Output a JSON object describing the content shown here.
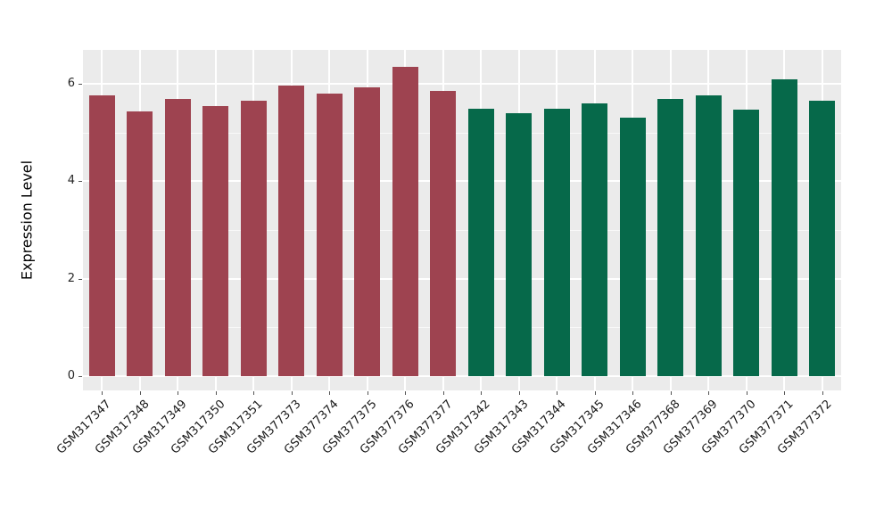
{
  "chart_data": {
    "type": "bar",
    "title": "",
    "xlabel": "",
    "ylabel": "Expression Level",
    "ylim": [
      0,
      6.7
    ],
    "yticks_major": [
      0,
      2,
      4,
      6
    ],
    "yticks_minor": [
      1,
      3,
      5
    ],
    "grid": "on",
    "legend": "none",
    "panel_background": "#EBEBEB",
    "grid_color": "#FFFFFF",
    "categories": [
      "GSM317347",
      "GSM317348",
      "GSM317349",
      "GSM317350",
      "GSM317351",
      "GSM377373",
      "GSM377374",
      "GSM377375",
      "GSM377376",
      "GSM377377",
      "GSM317342",
      "GSM317343",
      "GSM317344",
      "GSM317345",
      "GSM317346",
      "GSM377368",
      "GSM377369",
      "GSM377370",
      "GSM377371",
      "GSM377372"
    ],
    "values": [
      5.77,
      5.43,
      5.7,
      5.54,
      5.65,
      5.97,
      5.81,
      5.93,
      6.36,
      5.86,
      5.5,
      5.4,
      5.5,
      5.61,
      5.3,
      5.7,
      5.77,
      5.48,
      6.09,
      5.66
    ],
    "bar_colors": [
      "#9E4350",
      "#9E4350",
      "#9E4350",
      "#9E4350",
      "#9E4350",
      "#9E4350",
      "#9E4350",
      "#9E4350",
      "#9E4350",
      "#9E4350",
      "#06694A",
      "#06694A",
      "#06694A",
      "#06694A",
      "#06694A",
      "#06694A",
      "#06694A",
      "#06694A",
      "#06694A",
      "#06694A"
    ],
    "group_colors": {
      "left_group": "#9E4350",
      "right_group": "#06694A"
    }
  }
}
